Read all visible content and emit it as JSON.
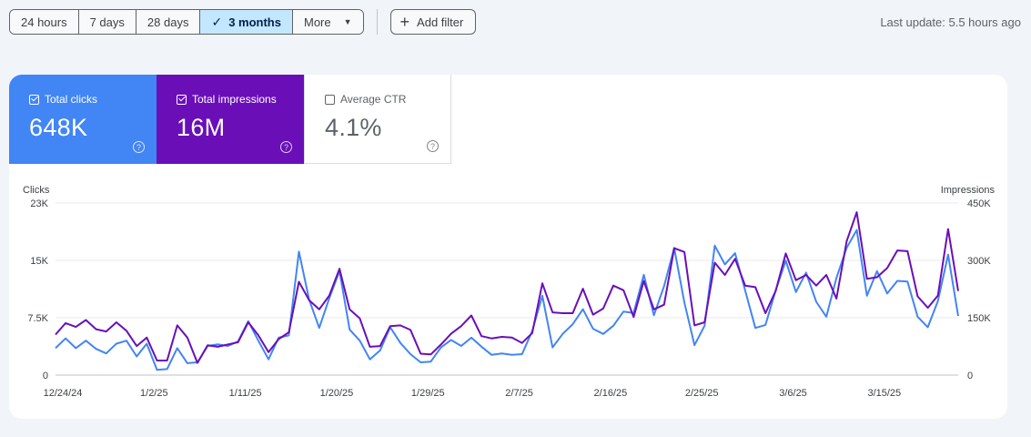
{
  "toolbar": {
    "ranges": [
      "24 hours",
      "7 days",
      "28 days",
      "3 months"
    ],
    "more_label": "More",
    "add_filter_label": "Add filter",
    "last_update": "Last update: 5.5 hours ago"
  },
  "metrics": {
    "clicks": {
      "label": "Total clicks",
      "value": "648K",
      "checked": true,
      "color": "#4285f4"
    },
    "impressions": {
      "label": "Total impressions",
      "value": "16M",
      "checked": true,
      "color": "#6a0fb8"
    },
    "ctr": {
      "label": "Average CTR",
      "value": "4.1%",
      "checked": false
    }
  },
  "chart_data": {
    "type": "line",
    "left_axis": {
      "title": "Clicks",
      "ticks": [
        "0",
        "7.5K",
        "15K",
        "23K"
      ],
      "range": [
        0,
        23000
      ]
    },
    "right_axis": {
      "title": "Impressions",
      "ticks": [
        "0",
        "150K",
        "300K",
        "450K"
      ],
      "range": [
        0,
        450000
      ]
    },
    "x_tick_labels": [
      "12/24/24",
      "1/2/25",
      "1/11/25",
      "1/20/25",
      "1/29/25",
      "2/7/25",
      "2/16/25",
      "2/25/25",
      "3/6/25",
      "3/15/25"
    ],
    "x_start": "2024-12-24",
    "series": [
      {
        "name": "Clicks",
        "axis": "left",
        "color": "#4285f4",
        "values": [
          3600,
          4900,
          3600,
          4600,
          3500,
          2900,
          4200,
          4600,
          2500,
          4200,
          700,
          800,
          3600,
          1600,
          1700,
          3900,
          4100,
          3900,
          4500,
          7200,
          4600,
          2100,
          5000,
          5300,
          16500,
          10100,
          6300,
          10300,
          13900,
          6100,
          4600,
          2100,
          3300,
          6400,
          4300,
          2800,
          1700,
          1800,
          3700,
          4700,
          3900,
          5000,
          3800,
          2700,
          2900,
          2700,
          2800,
          5900,
          10600,
          3700,
          5500,
          6800,
          8800,
          6200,
          5500,
          6600,
          8500,
          8300,
          13400,
          8000,
          11900,
          17000,
          9700,
          4000,
          6600,
          17300,
          14800,
          16300,
          11300,
          6300,
          6700,
          11300,
          15300,
          11100,
          13700,
          9800,
          7800,
          13000,
          17000,
          19400,
          10600,
          13900,
          10900,
          12600,
          12500,
          7800,
          6400,
          9900,
          16100,
          7900
        ]
      },
      {
        "name": "Impressions",
        "axis": "right",
        "color": "#6a0fb8",
        "values": [
          106000,
          136000,
          126000,
          144000,
          120000,
          114000,
          138000,
          116000,
          76000,
          98000,
          38000,
          38000,
          130000,
          98000,
          32000,
          78000,
          74000,
          80000,
          86000,
          138000,
          104000,
          60000,
          94000,
          112000,
          244000,
          196000,
          172000,
          208000,
          278000,
          172000,
          148000,
          74000,
          76000,
          128000,
          130000,
          118000,
          56000,
          54000,
          80000,
          108000,
          128000,
          156000,
          102000,
          96000,
          100000,
          98000,
          84000,
          110000,
          240000,
          164000,
          162000,
          162000,
          226000,
          158000,
          174000,
          234000,
          222000,
          152000,
          246000,
          172000,
          184000,
          332000,
          322000,
          130000,
          138000,
          294000,
          262000,
          304000,
          234000,
          230000,
          162000,
          220000,
          318000,
          248000,
          262000,
          234000,
          262000,
          200000,
          350000,
          426000,
          252000,
          256000,
          280000,
          326000,
          324000,
          206000,
          176000,
          208000,
          382000,
          220000
        ]
      }
    ],
    "grid": true,
    "legend": "none"
  }
}
